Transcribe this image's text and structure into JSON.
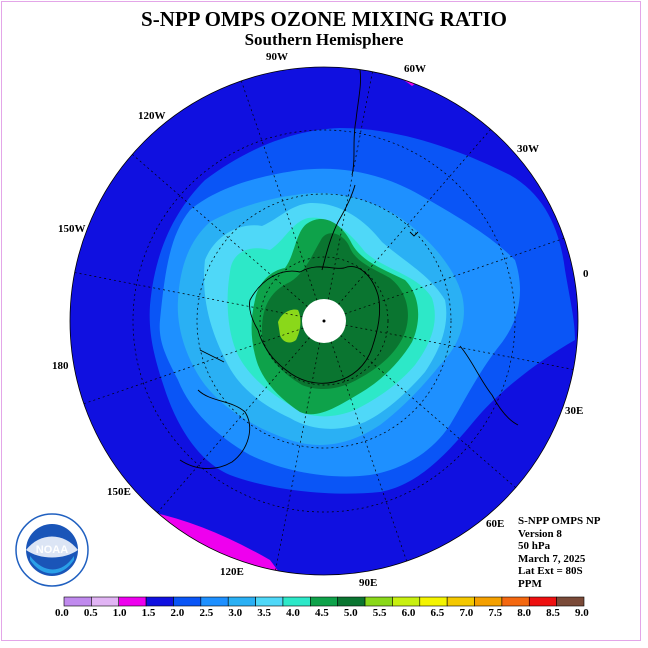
{
  "header": {
    "title": "S-NPP OMPS OZONE MIXING RATIO",
    "subtitle": "Southern Hemisphere"
  },
  "longitude_labels": [
    "90W",
    "60W",
    "120W",
    "30W",
    "150W",
    "0",
    "180",
    "30E",
    "150E",
    "60E",
    "120E",
    "90E"
  ],
  "info": {
    "instrument": "S-NPP OMPS NP",
    "version": "Version 8",
    "level": "50 hPa",
    "date": "March 7, 2025",
    "lat_ext": "Lat Ext = 80S",
    "units": "PPM"
  },
  "logo": {
    "text": "NOAA",
    "ring_text": "NATIONAL OCEANIC AND ATMOSPHERIC ADMINISTRATION · U.S. DEPARTMENT OF COMMERCE"
  },
  "colorbar": {
    "labels": [
      "0.0",
      "0.5",
      "1.0",
      "1.5",
      "2.0",
      "2.5",
      "3.0",
      "3.5",
      "4.0",
      "4.5",
      "5.0",
      "5.5",
      "6.0",
      "6.5",
      "7.0",
      "7.5",
      "8.0",
      "8.5",
      "9.0"
    ],
    "colors": [
      "#c08aee",
      "#e1b4f4",
      "#ee00ee",
      "#1010e0",
      "#0a55f6",
      "#1e90ff",
      "#2ab0f4",
      "#4fd8f8",
      "#2de8c8",
      "#0ea24a",
      "#0a7530",
      "#8ad81a",
      "#c8f010",
      "#f4f400",
      "#f4c800",
      "#f4a000",
      "#f46810",
      "#ee1010",
      "#7a4a38"
    ]
  },
  "map": {
    "colors": {
      "outer": "#1010e0",
      "band_2_0": "#0a55f6",
      "band_2_5": "#1e90ff",
      "band_3_0": "#2ab0f4",
      "band_3_5": "#4fd8f8",
      "band_4_0": "#2de8c8",
      "band_4_5": "#0ea24a",
      "band_5_0": "#0a7530",
      "band_5_5": "#8ad81a",
      "band_1_0": "#ee00ee"
    }
  }
}
